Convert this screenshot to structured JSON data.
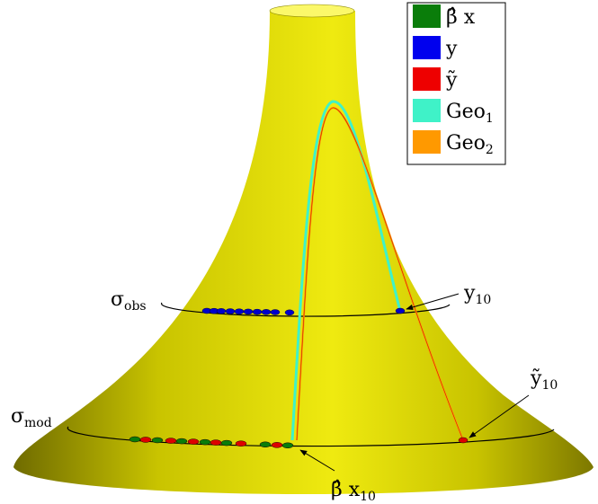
{
  "legend": [
    {
      "label": "β̂ x",
      "color": "#0a7d0a"
    },
    {
      "label": "y",
      "color": "#0000ee"
    },
    {
      "label": "ỹ",
      "color": "#ee0000"
    },
    {
      "label": "Geo",
      "sub": "1",
      "color": "#3ff2c8"
    },
    {
      "label": "Geo",
      "sub": "2",
      "color": "#ff9900"
    }
  ],
  "annotations": [
    {
      "label": "σ",
      "sub": "obs"
    },
    {
      "label": "σ",
      "sub": "mod"
    },
    {
      "label": "y",
      "sub": "10"
    },
    {
      "label": "ỹ",
      "sub": "10"
    },
    {
      "label": "β̂ x",
      "sub": "10"
    }
  ]
}
